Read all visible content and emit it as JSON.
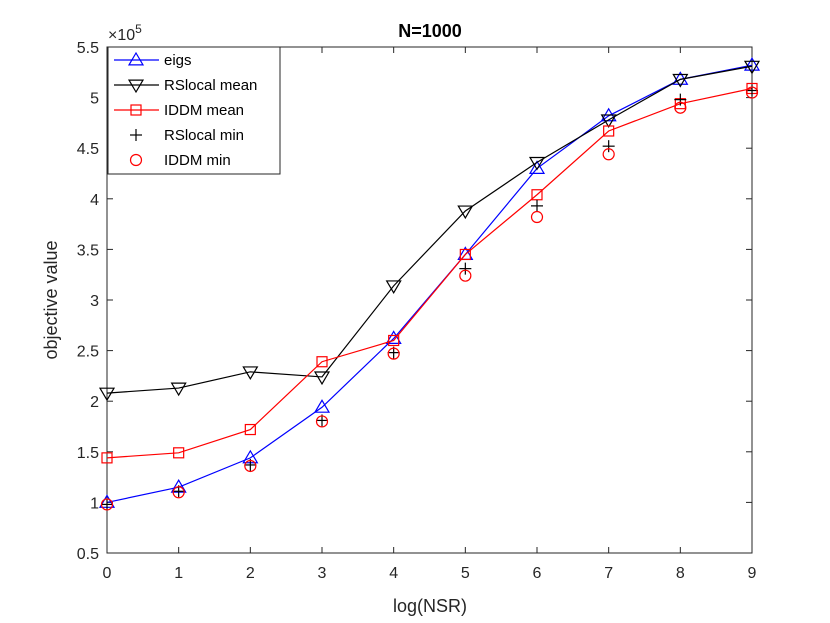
{
  "chart_data": {
    "type": "line",
    "title": "N=1000",
    "xlabel": "log(NSR)",
    "ylabel": "objective value",
    "y_scale_label_base": "×10",
    "y_scale_label_exp": "5",
    "x": [
      0,
      1,
      2,
      3,
      4,
      5,
      6,
      7,
      8,
      9
    ],
    "xlim": [
      0,
      9
    ],
    "ylim": [
      0.5,
      5.5
    ],
    "xticks": [
      "0",
      "1",
      "2",
      "3",
      "4",
      "5",
      "6",
      "7",
      "8",
      "9"
    ],
    "yticks": [
      "0.5",
      "1",
      "1.5",
      "2",
      "2.5",
      "3",
      "3.5",
      "4",
      "4.5",
      "5",
      "5.5"
    ],
    "grid": false,
    "legend_position": "top-left",
    "series": [
      {
        "name": "eigs",
        "color": "#0000ff",
        "marker": "triangle-up",
        "line": true,
        "values": [
          1.0,
          1.15,
          1.44,
          1.94,
          2.62,
          3.45,
          4.3,
          4.82,
          5.18,
          5.32
        ]
      },
      {
        "name": "RSlocal mean",
        "color": "#000000",
        "marker": "triangle-down",
        "line": true,
        "values": [
          2.08,
          2.13,
          2.29,
          2.24,
          3.14,
          3.88,
          4.36,
          4.78,
          5.18,
          5.31
        ]
      },
      {
        "name": "IDDM mean",
        "color": "#ff0000",
        "marker": "square",
        "line": true,
        "values": [
          1.44,
          1.49,
          1.72,
          2.39,
          2.6,
          3.45,
          4.04,
          4.67,
          4.94,
          5.09
        ]
      },
      {
        "name": "RSlocal min",
        "color": "#000000",
        "marker": "plus",
        "line": false,
        "values": [
          0.98,
          1.11,
          1.37,
          1.81,
          2.48,
          3.31,
          3.93,
          4.52,
          4.98,
          5.07
        ]
      },
      {
        "name": "IDDM min",
        "color": "#ff0000",
        "marker": "circle",
        "line": false,
        "values": [
          0.98,
          1.1,
          1.36,
          1.8,
          2.47,
          3.24,
          3.82,
          4.44,
          4.9,
          5.05
        ]
      }
    ]
  }
}
